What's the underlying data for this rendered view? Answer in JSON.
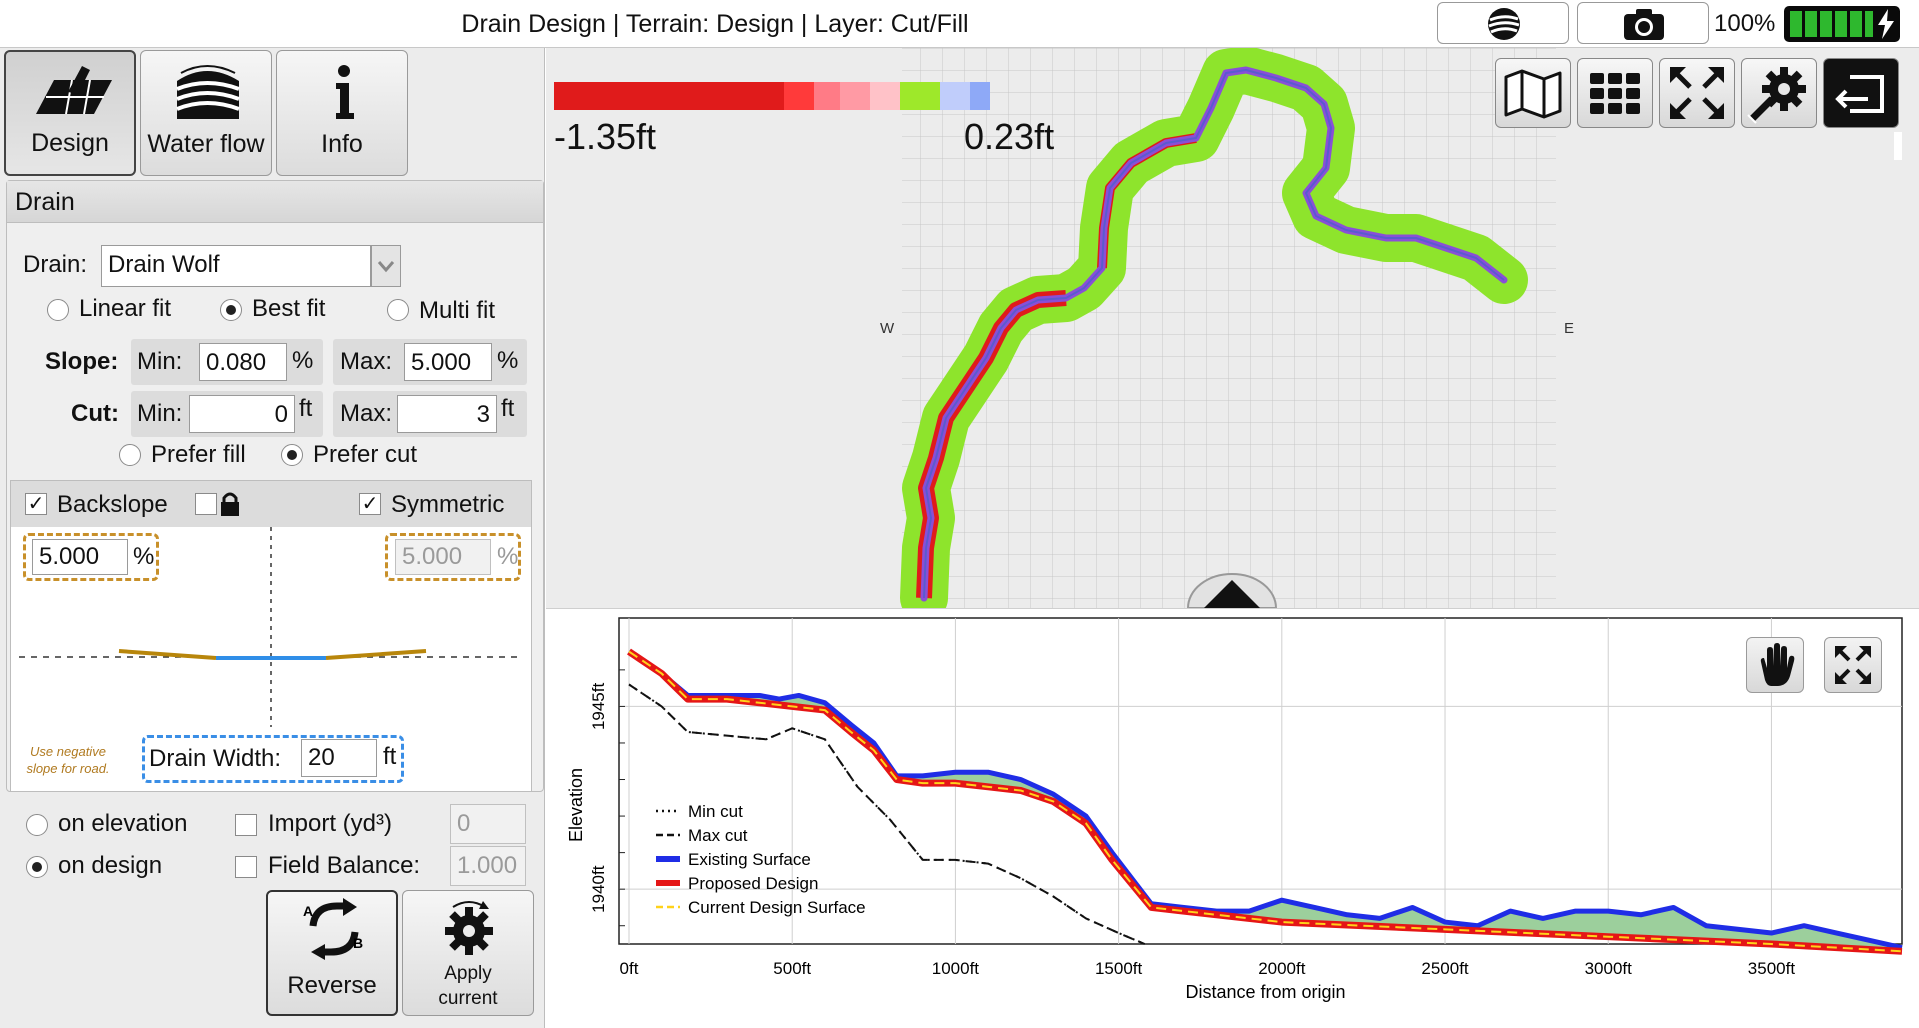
{
  "window": {
    "title": "Drain Design | Terrain: Design | Layer: Cut/Fill",
    "battery_percent": "100%",
    "battery_level": 1.0
  },
  "mode_tabs": [
    {
      "label": "Design",
      "icon": "design-grid-icon",
      "active": true
    },
    {
      "label": "Water flow",
      "icon": "water-flow-icon",
      "active": false
    },
    {
      "label": "Info",
      "icon": "info-icon",
      "active": false
    }
  ],
  "drain": {
    "header": "Drain",
    "drain_label": "Drain:",
    "drain_value": "Drain Wolf",
    "fit_options": [
      {
        "label": "Linear fit",
        "selected": false
      },
      {
        "label": "Best fit",
        "selected": true
      },
      {
        "label": "Multi fit",
        "selected": false
      }
    ],
    "slope": {
      "label": "Slope:",
      "min_label": "Min:",
      "min_value": "0.080",
      "max_label": "Max:",
      "max_value": "5.000",
      "unit": "%"
    },
    "cut": {
      "label": "Cut:",
      "min_label": "Min:",
      "min_value": "0",
      "max_label": "Max:",
      "max_value": "3",
      "unit": "ft"
    },
    "prefer": [
      {
        "label": "Prefer fill",
        "selected": false
      },
      {
        "label": "Prefer cut",
        "selected": true
      }
    ]
  },
  "backslope": {
    "label": "Backslope",
    "checked": true,
    "lock_checked": false,
    "symmetric_label": "Symmetric",
    "symmetric_checked": true,
    "left_value": "5.000",
    "right_value": "5.000",
    "unit": "%",
    "note": "Use negative slope for road.",
    "drain_width_label": "Drain Width:",
    "drain_width_value": "20",
    "drain_width_unit": "ft"
  },
  "reference": {
    "on_elevation": {
      "label": "on elevation",
      "selected": false
    },
    "on_design": {
      "label": "on design",
      "selected": true
    },
    "import_label": "Import (yd³)",
    "import_checked": false,
    "import_value": "0",
    "field_balance_label": "Field Balance:",
    "field_balance_checked": false,
    "field_balance_value": "1.000"
  },
  "actions": {
    "reverse_label": "Reverse",
    "apply_label_line1": "Apply",
    "apply_label_line2": "current"
  },
  "map": {
    "legend_min": "-1.35ft",
    "legend_max": "0.23ft",
    "legend_colors": [
      "#e01b1b",
      "#e01b1b",
      "#ff3a3a",
      "#ff7b86",
      "#ff9aa4",
      "#ffc2c8",
      "#9ee82a",
      "#c0cdfb",
      "#8ea9f7"
    ],
    "compass_w": "W",
    "compass_e": "E",
    "toolbar": [
      "map-layers-icon",
      "grid-icon",
      "expand-arrows-icon",
      "settings-wrench-icon",
      "exit-icon"
    ]
  },
  "chart_data": {
    "type": "line",
    "title": "",
    "xlabel": "Distance from origin",
    "ylabel": "Elevation",
    "xlim": [
      0,
      3900
    ],
    "ylim": [
      1938.5,
      1947.2
    ],
    "x_ticks": [
      "0ft",
      "500ft",
      "1000ft",
      "1500ft",
      "2000ft",
      "2500ft",
      "3000ft",
      "3500ft"
    ],
    "y_ticks": [
      "1940ft",
      "1945ft"
    ],
    "legend": "left",
    "grid": true,
    "series": [
      {
        "name": "Min cut",
        "style": "dotted",
        "color": "#111111",
        "x": [
          0,
          100,
          180,
          300,
          420,
          500,
          600,
          700,
          800,
          900,
          1000,
          1100,
          1200,
          1300,
          1400,
          1500,
          1580
        ],
        "y": [
          1945.6,
          1945.0,
          1944.3,
          1944.2,
          1944.1,
          1944.4,
          1944.1,
          1942.8,
          1941.9,
          1940.8,
          1940.8,
          1940.7,
          1940.3,
          1939.8,
          1939.2,
          1938.8,
          1938.5
        ]
      },
      {
        "name": "Max cut",
        "style": "dashed",
        "color": "#111111",
        "x": [
          0,
          100,
          180,
          300,
          420,
          500,
          600,
          700,
          800,
          900,
          1000,
          1100,
          1200,
          1300,
          1400,
          1500,
          1580
        ],
        "y": [
          1945.6,
          1945.0,
          1944.3,
          1944.2,
          1944.1,
          1944.4,
          1944.1,
          1942.8,
          1941.9,
          1940.8,
          1940.8,
          1940.7,
          1940.3,
          1939.8,
          1939.2,
          1938.8,
          1938.5
        ]
      },
      {
        "name": "Existing Surface",
        "style": "solid",
        "color": "#1f2de6",
        "x": [
          0,
          100,
          180,
          300,
          400,
          460,
          520,
          600,
          680,
          750,
          820,
          900,
          1000,
          1100,
          1200,
          1300,
          1400,
          1480,
          1600,
          1700,
          1800,
          1900,
          2000,
          2100,
          2200,
          2300,
          2400,
          2500,
          2600,
          2700,
          2800,
          2900,
          3000,
          3100,
          3200,
          3300,
          3400,
          3500,
          3600,
          3700,
          3800,
          3900
        ],
        "y": [
          1946.5,
          1945.9,
          1945.3,
          1945.3,
          1945.3,
          1945.2,
          1945.3,
          1945.1,
          1944.5,
          1944.0,
          1943.1,
          1943.1,
          1943.2,
          1943.2,
          1943.0,
          1942.6,
          1942.0,
          1941.0,
          1939.6,
          1939.5,
          1939.4,
          1939.4,
          1939.7,
          1939.5,
          1939.3,
          1939.2,
          1939.5,
          1939.1,
          1939.0,
          1939.4,
          1939.2,
          1939.4,
          1939.4,
          1939.3,
          1939.5,
          1939.0,
          1938.9,
          1938.8,
          1939.0,
          1938.8,
          1938.6,
          1938.4
        ]
      },
      {
        "name": "Proposed Design",
        "style": "solid",
        "color": "#e51616",
        "x": [
          0,
          100,
          180,
          300,
          400,
          500,
          600,
          680,
          750,
          820,
          900,
          1000,
          1100,
          1200,
          1300,
          1400,
          1480,
          1600,
          1700,
          1800,
          2000,
          2500,
          3000,
          3500,
          3900
        ],
        "y": [
          1946.5,
          1945.9,
          1945.2,
          1945.2,
          1945.1,
          1945.0,
          1944.9,
          1944.3,
          1943.8,
          1943.0,
          1942.9,
          1942.9,
          1942.8,
          1942.7,
          1942.4,
          1941.8,
          1940.8,
          1939.5,
          1939.4,
          1939.3,
          1939.1,
          1938.9,
          1938.7,
          1938.5,
          1938.3
        ]
      },
      {
        "name": "Current Design Surface",
        "style": "dashed",
        "color": "#ffd21a",
        "x": [
          0,
          100,
          180,
          300,
          400,
          500,
          600,
          680,
          750,
          820,
          900,
          1000,
          1100,
          1200,
          1300,
          1400,
          1480,
          1600,
          1700,
          1800,
          2000,
          2500,
          3000,
          3500,
          3900
        ],
        "y": [
          1946.5,
          1945.9,
          1945.2,
          1945.2,
          1945.1,
          1945.0,
          1944.9,
          1944.3,
          1943.8,
          1943.0,
          1942.9,
          1942.9,
          1942.8,
          1942.7,
          1942.4,
          1941.8,
          1940.8,
          1939.5,
          1939.4,
          1939.3,
          1939.1,
          1938.9,
          1938.7,
          1938.5,
          1938.3
        ]
      }
    ],
    "fill_between": {
      "upper": "Existing Surface",
      "lower": "Proposed Design",
      "color": "#9ccf9c"
    },
    "tools": [
      "pan-hand-icon",
      "fit-expand-icon"
    ]
  }
}
